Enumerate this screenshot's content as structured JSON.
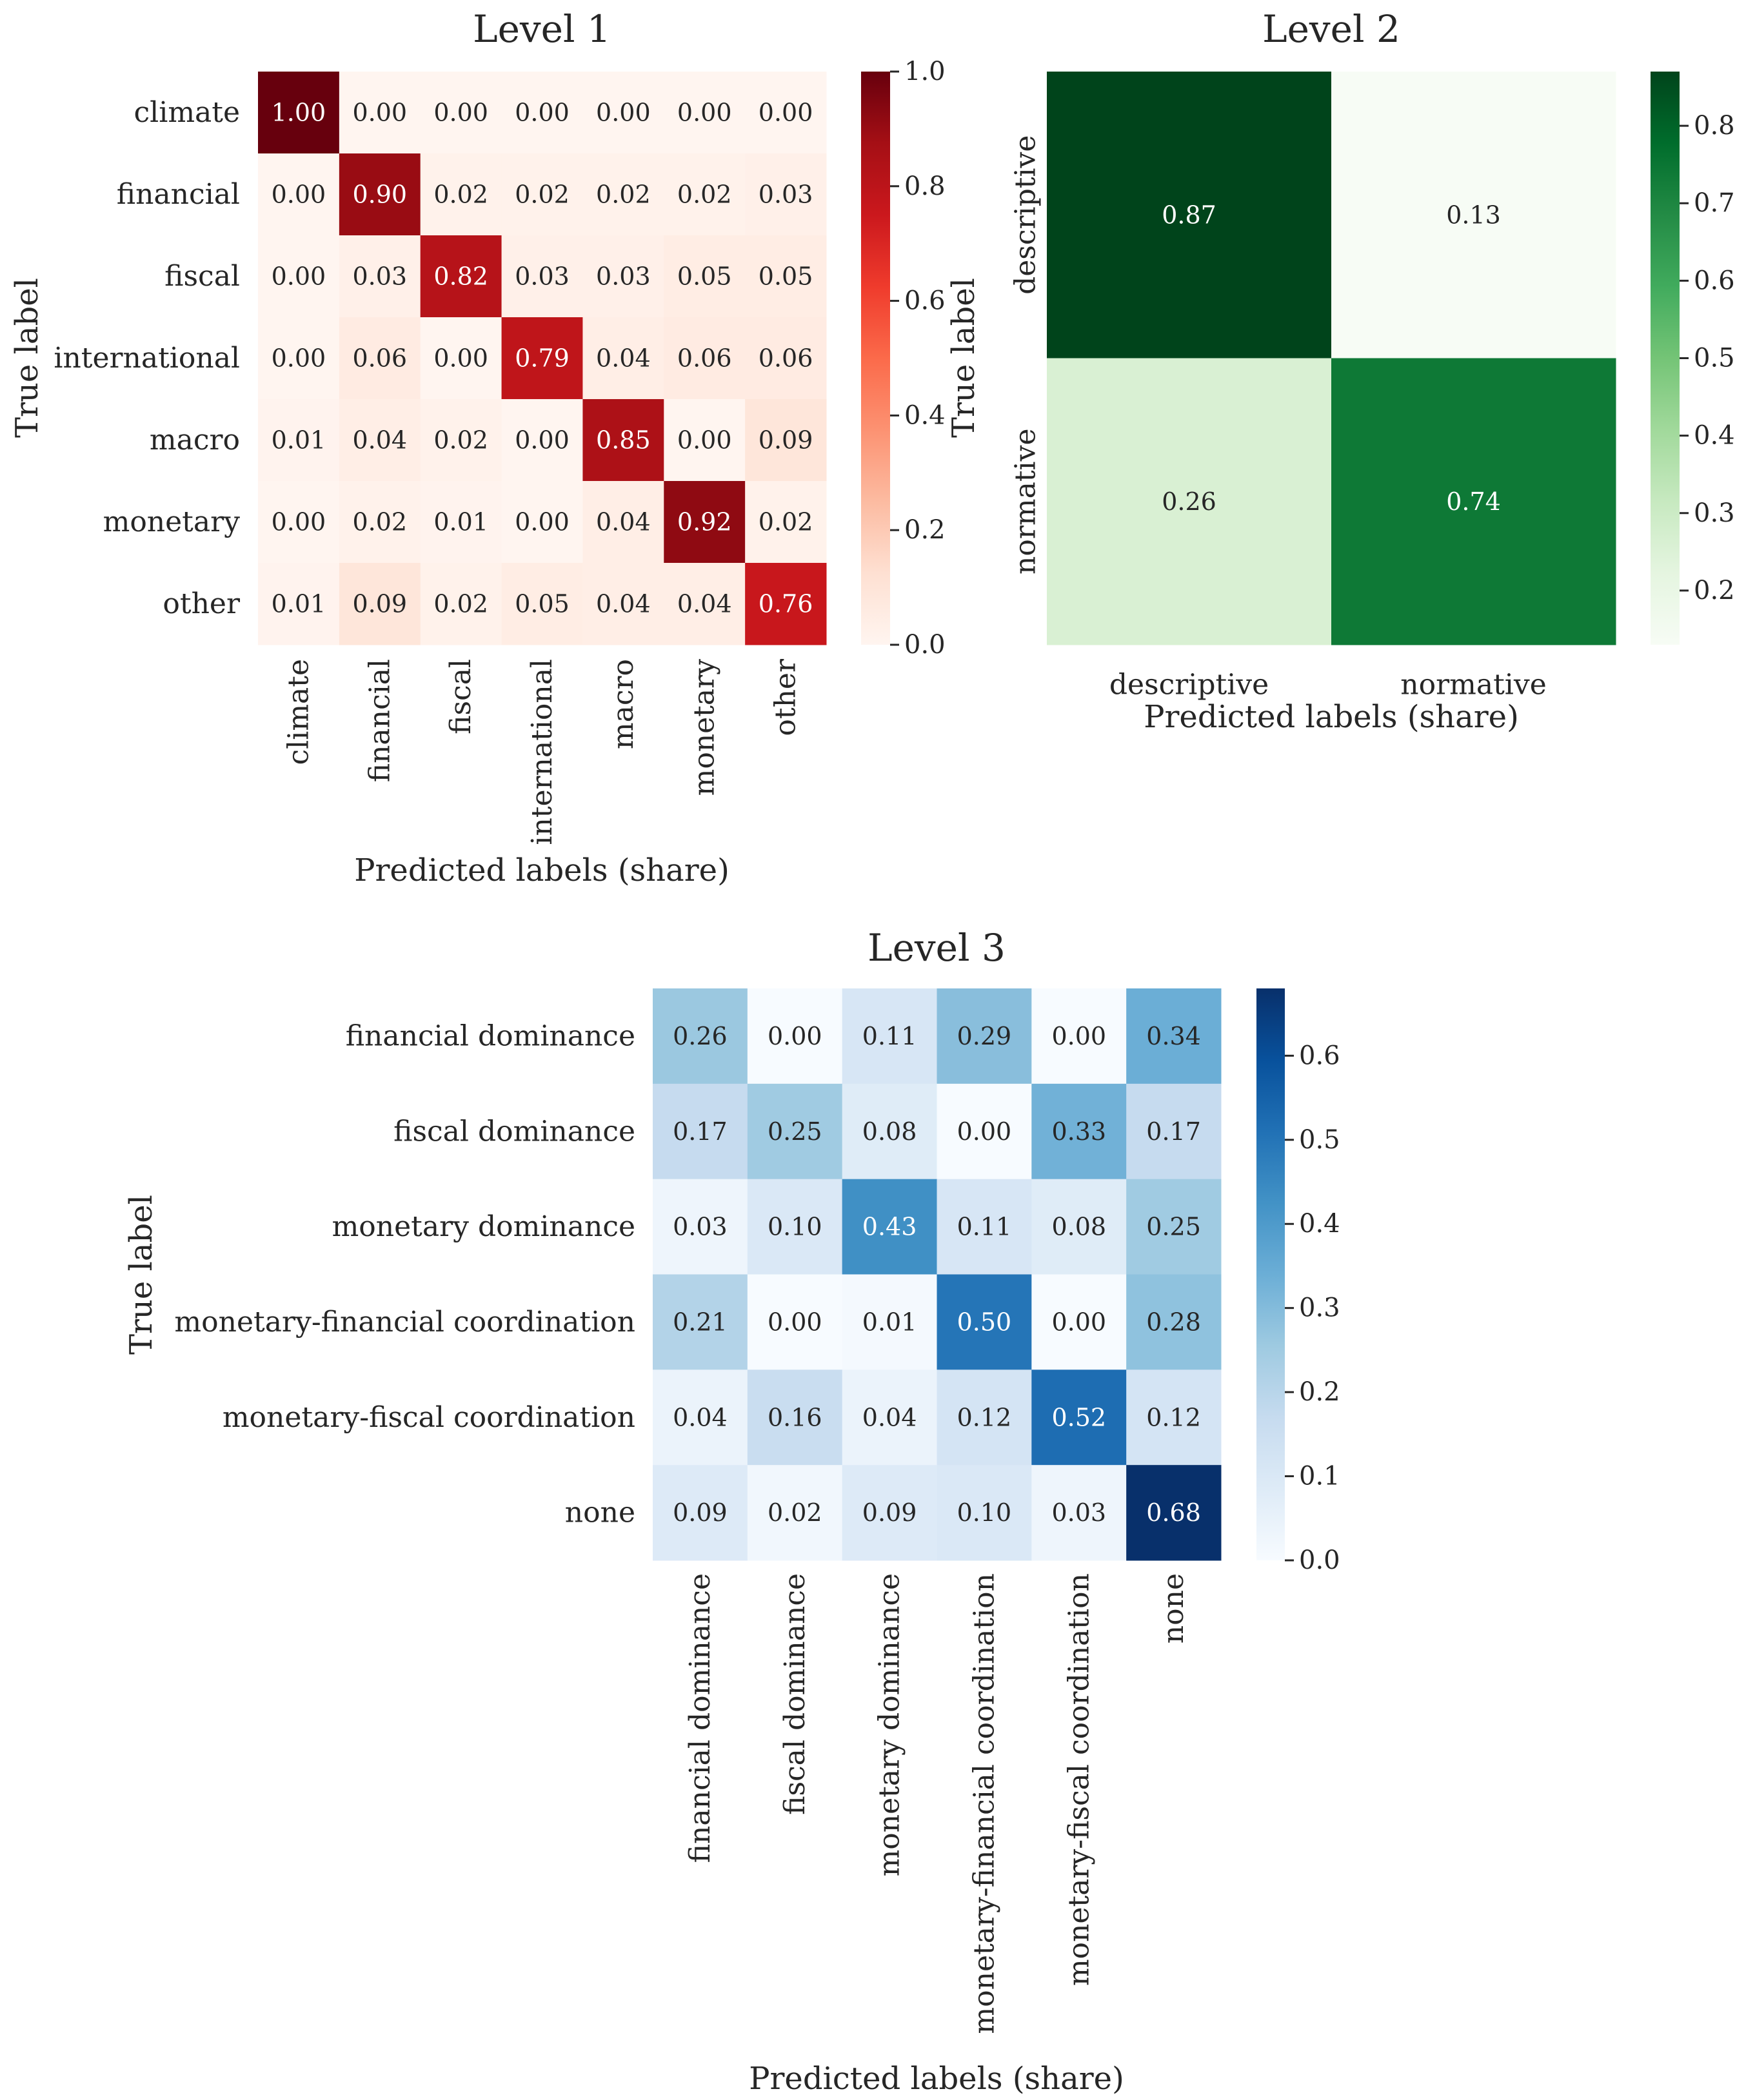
{
  "chart_data": [
    {
      "type": "heatmap",
      "id": "level1",
      "title": "Level 1",
      "xlabel": "Predicted labels (share)",
      "ylabel": "True label",
      "colormap": "Reds",
      "color_range": [
        0.0,
        1.0
      ],
      "colorbar_ticks": [
        "0.0",
        "0.2",
        "0.4",
        "0.6",
        "0.8",
        "1.0"
      ],
      "x_tick_rotation": "vertical",
      "y_tick_rotation": "horizontal",
      "rows": [
        "climate",
        "financial",
        "fiscal",
        "international",
        "macro",
        "monetary",
        "other"
      ],
      "cols": [
        "climate",
        "financial",
        "fiscal",
        "international",
        "macro",
        "monetary",
        "other"
      ],
      "values": [
        [
          1.0,
          0.0,
          0.0,
          0.0,
          0.0,
          0.0,
          0.0
        ],
        [
          0.0,
          0.9,
          0.02,
          0.02,
          0.02,
          0.02,
          0.03
        ],
        [
          0.0,
          0.03,
          0.82,
          0.03,
          0.03,
          0.05,
          0.05
        ],
        [
          0.0,
          0.06,
          0.0,
          0.79,
          0.04,
          0.06,
          0.06
        ],
        [
          0.01,
          0.04,
          0.02,
          0.0,
          0.85,
          0.0,
          0.09
        ],
        [
          0.0,
          0.02,
          0.01,
          0.0,
          0.04,
          0.92,
          0.02
        ],
        [
          0.01,
          0.09,
          0.02,
          0.05,
          0.04,
          0.04,
          0.76
        ]
      ]
    },
    {
      "type": "heatmap",
      "id": "level2",
      "title": "Level 2",
      "xlabel": "Predicted labels (share)",
      "ylabel": "True label",
      "colormap": "Greens",
      "color_range": [
        0.13,
        0.87
      ],
      "colorbar_ticks": [
        "0.2",
        "0.3",
        "0.4",
        "0.5",
        "0.6",
        "0.7",
        "0.8"
      ],
      "x_tick_rotation": "horizontal",
      "y_tick_rotation": "vertical",
      "rows": [
        "descriptive",
        "normative"
      ],
      "cols": [
        "descriptive",
        "normative"
      ],
      "values": [
        [
          0.87,
          0.13
        ],
        [
          0.26,
          0.74
        ]
      ]
    },
    {
      "type": "heatmap",
      "id": "level3",
      "title": "Level 3",
      "xlabel": "Predicted labels (share)",
      "ylabel": "True label",
      "colormap": "Blues",
      "color_range": [
        0.0,
        0.68
      ],
      "colorbar_ticks": [
        "0.0",
        "0.1",
        "0.2",
        "0.3",
        "0.4",
        "0.5",
        "0.6"
      ],
      "x_tick_rotation": "vertical",
      "y_tick_rotation": "horizontal",
      "rows": [
        "financial dominance",
        "fiscal dominance",
        "monetary dominance",
        "monetary-financial coordination",
        "monetary-fiscal coordination",
        "none"
      ],
      "cols": [
        "financial dominance",
        "fiscal dominance",
        "monetary dominance",
        "monetary-financial coordination",
        "monetary-fiscal coordination",
        "none"
      ],
      "values": [
        [
          0.26,
          0.0,
          0.11,
          0.29,
          0.0,
          0.34
        ],
        [
          0.17,
          0.25,
          0.08,
          0.0,
          0.33,
          0.17
        ],
        [
          0.03,
          0.1,
          0.43,
          0.11,
          0.08,
          0.25
        ],
        [
          0.21,
          0.0,
          0.01,
          0.5,
          0.0,
          0.28
        ],
        [
          0.04,
          0.16,
          0.04,
          0.12,
          0.52,
          0.12
        ],
        [
          0.09,
          0.02,
          0.09,
          0.1,
          0.03,
          0.68
        ]
      ]
    }
  ]
}
